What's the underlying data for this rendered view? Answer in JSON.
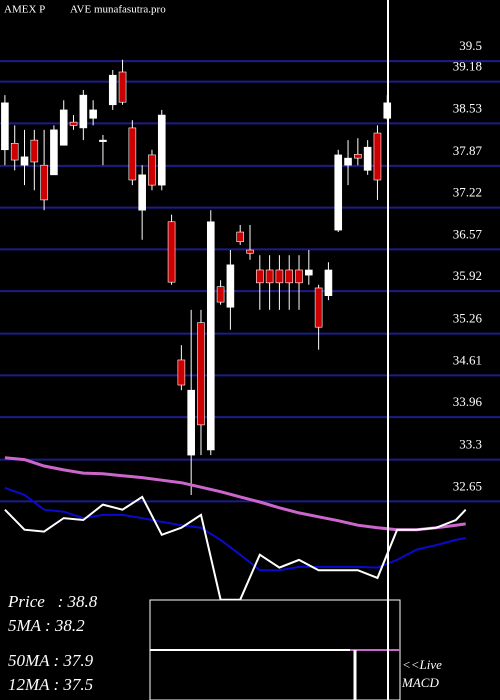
{
  "chart_data": {
    "type": "candlestick",
    "title_left": "AMEX  P",
    "title_right": "AVE munafasutra.pro",
    "ylim": [
      29.56,
      40.45
    ],
    "yticks": [
      39.5,
      39.18,
      38.53,
      37.87,
      37.22,
      36.57,
      35.92,
      35.26,
      34.61,
      33.96,
      33.3,
      32.65
    ],
    "grid": true,
    "up_color": "#ffffff",
    "down_color": "#cc0000",
    "candles": [
      [
        38.12,
        38.97,
        37.88,
        38.85
      ],
      [
        38.22,
        38.5,
        37.8,
        37.96
      ],
      [
        37.88,
        38.43,
        37.57,
        38.01
      ],
      [
        38.27,
        38.43,
        37.49,
        37.93
      ],
      [
        37.88,
        38.43,
        37.18,
        37.34
      ],
      [
        37.73,
        38.5,
        37.73,
        38.43
      ],
      [
        38.19,
        38.89,
        38.19,
        38.74
      ],
      [
        38.55,
        38.66,
        38.43,
        38.5
      ],
      [
        38.46,
        39.05,
        38.27,
        38.97
      ],
      [
        38.61,
        38.89,
        38.5,
        38.74
      ],
      [
        38.27,
        38.35,
        37.88,
        38.27
      ],
      [
        38.82,
        39.36,
        38.74,
        39.28
      ],
      [
        39.33,
        39.52,
        38.82,
        38.86
      ],
      [
        38.46,
        38.58,
        37.57,
        37.65
      ],
      [
        37.18,
        37.88,
        36.72,
        37.73
      ],
      [
        38.04,
        38.12,
        37.49,
        37.57
      ],
      [
        37.57,
        38.74,
        37.49,
        38.66
      ],
      [
        37.0,
        37.11,
        36.02,
        36.06
      ],
      [
        34.85,
        35.08,
        34.38,
        34.46
      ],
      [
        33.37,
        35.63,
        32.75,
        34.38
      ],
      [
        35.43,
        35.63,
        33.37,
        33.84
      ],
      [
        33.45,
        37.18,
        33.37,
        37.0
      ],
      [
        35.99,
        36.09,
        35.71,
        35.75
      ],
      [
        35.67,
        36.56,
        35.32,
        36.33
      ],
      [
        36.84,
        36.95,
        36.64,
        36.69
      ],
      [
        36.56,
        36.95,
        36.41,
        36.51
      ],
      [
        36.25,
        36.48,
        35.63,
        36.05
      ],
      [
        36.25,
        36.48,
        35.63,
        36.05
      ],
      [
        36.25,
        36.48,
        35.63,
        36.05
      ],
      [
        36.25,
        36.48,
        35.63,
        36.05
      ],
      [
        36.25,
        36.48,
        35.63,
        36.05
      ],
      [
        36.17,
        36.56,
        36.02,
        36.25
      ],
      [
        35.97,
        36.02,
        35.01,
        35.36
      ],
      [
        35.85,
        36.37,
        35.78,
        36.25
      ],
      [
        36.87,
        38.12,
        36.84,
        38.04
      ],
      [
        37.88,
        38.27,
        37.57,
        37.99
      ],
      [
        38.05,
        38.3,
        37.88,
        37.99
      ],
      [
        37.8,
        38.27,
        37.73,
        38.16
      ],
      [
        38.38,
        38.5,
        37.34,
        37.65
      ],
      [
        38.61,
        38.97,
        38.58,
        38.85
      ]
    ],
    "x": [
      0,
      2,
      4,
      6,
      8,
      10,
      12,
      14,
      16,
      18,
      20,
      22,
      24,
      26,
      28,
      30,
      32,
      34,
      36,
      38,
      40,
      42,
      44,
      46,
      47
    ],
    "xlim": [
      -0.5,
      50.5
    ],
    "series": [
      {
        "color": "#cc66cc",
        "values": [
          33.33,
          33.3,
          33.2,
          33.14,
          33.09,
          33.08,
          33.05,
          33.02,
          32.98,
          32.94,
          32.87,
          32.8,
          32.72,
          32.64,
          32.55,
          32.47,
          32.41,
          32.35,
          32.28,
          32.24,
          32.21,
          32.21,
          32.24,
          32.28,
          32.3
        ]
      },
      {
        "color": "#0a0acc",
        "values": [
          32.86,
          32.75,
          32.52,
          32.49,
          32.39,
          32.44,
          32.44,
          32.39,
          32.33,
          32.28,
          32.24,
          32.05,
          31.82,
          31.58,
          31.58,
          31.63,
          31.63,
          31.63,
          31.63,
          31.62,
          31.74,
          31.9,
          31.97,
          32.05,
          32.08
        ]
      },
      {
        "color": "#ffffff",
        "values": [
          32.52,
          32.21,
          32.18,
          32.39,
          32.36,
          32.6,
          32.52,
          32.72,
          32.13,
          32.24,
          32.44,
          31.12,
          31.12,
          31.82,
          31.62,
          31.74,
          31.58,
          31.58,
          31.58,
          31.46,
          32.21,
          32.21,
          32.24,
          32.36,
          32.52
        ]
      }
    ],
    "info_lines": [
      "Price   : 38.8",
      "5MA : 38.2",
      "50MA : 37.9",
      "12MA : 37.5"
    ],
    "live_label": "<<Live",
    "macd_label": "MACD"
  }
}
